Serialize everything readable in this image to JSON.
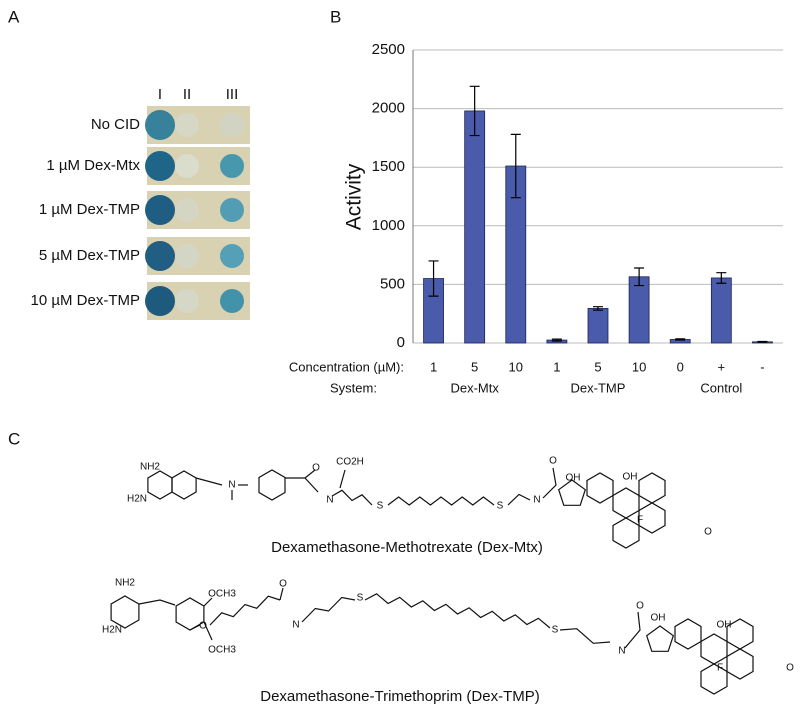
{
  "panel_a": {
    "label": "A",
    "columns": [
      "I",
      "II",
      "III"
    ],
    "rows": [
      "No CID",
      "1 µM Dex-Mtx",
      "1 µM Dex-TMP",
      "5 µM Dex-TMP",
      "10 µM Dex-TMP"
    ]
  },
  "chart_data": {
    "type": "bar",
    "panel_label": "B",
    "ylabel": "Activity",
    "row_labels": [
      "Concentration (µM):",
      "System:"
    ],
    "categories": [
      "1",
      "5",
      "10",
      "1",
      "5",
      "10",
      "0",
      "+",
      "-"
    ],
    "groups": [
      "Dex-Mtx",
      "Dex-TMP",
      "Control"
    ],
    "series": [
      {
        "color": "#4b5bab",
        "values": [
          550,
          1980,
          1510,
          25,
          295,
          565,
          30,
          555,
          10
        ],
        "errors": [
          150,
          210,
          270,
          8,
          15,
          75,
          5,
          45,
          3
        ]
      }
    ],
    "ylim": [
      0,
      2500
    ],
    "yticks": [
      0,
      500,
      1000,
      1500,
      2000,
      2500
    ],
    "grid": true
  },
  "panel_c": {
    "label": "C",
    "structures": [
      {
        "atoms": [
          "NH2",
          "H2N",
          "N",
          "O",
          "N",
          "CO2H",
          "S",
          "S",
          "N",
          "O",
          "OH",
          "OH",
          "F",
          "O"
        ],
        "caption": "Dexamethasone-Methotrexate (Dex-Mtx)"
      },
      {
        "atoms": [
          "NH2",
          "H2N",
          "OCH3",
          "O",
          "OCH3",
          "O",
          "N",
          "S",
          "S",
          "N",
          "O",
          "OH",
          "OH",
          "F",
          "O"
        ],
        "caption": "Dexamethasone-Trimethoprim (Dex-TMP)"
      }
    ]
  }
}
